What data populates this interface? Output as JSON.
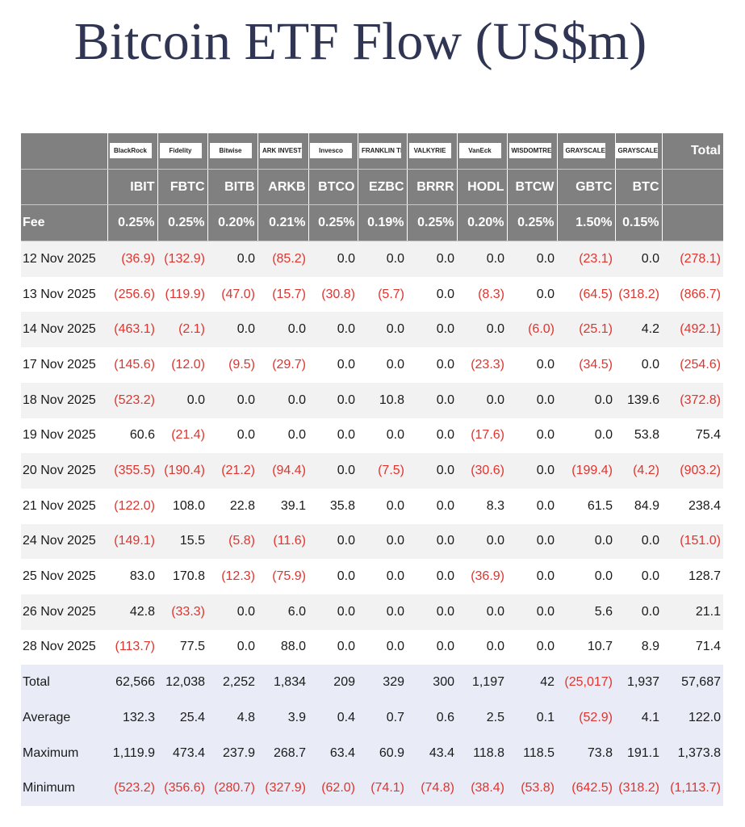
{
  "title": "Bitcoin ETF Flow (US$m)",
  "header": {
    "logos": [
      "BlackRock",
      "Fidelity",
      "Bitwise",
      "ARK INVEST",
      "Invesco",
      "FRANKLIN TEMPLETON",
      "VALKYRIE",
      "VanEck",
      "WISDOMTREE",
      "GRAYSCALE",
      "GRAYSCALE"
    ],
    "total": "Total",
    "tickers": [
      "IBIT",
      "FBTC",
      "BITB",
      "ARKB",
      "BTCO",
      "EZBC",
      "BRRR",
      "HODL",
      "BTCW",
      "GBTC",
      "BTC"
    ],
    "fee_label": "Fee",
    "fees": [
      "0.25%",
      "0.25%",
      "0.20%",
      "0.21%",
      "0.25%",
      "0.19%",
      "0.25%",
      "0.20%",
      "0.25%",
      "1.50%",
      "0.15%"
    ]
  },
  "rows": [
    [
      "12 Nov 2025",
      "(36.9)",
      "(132.9)",
      "0.0",
      "(85.2)",
      "0.0",
      "0.0",
      "0.0",
      "0.0",
      "0.0",
      "(23.1)",
      "0.0",
      "(278.1)"
    ],
    [
      "13 Nov 2025",
      "(256.6)",
      "(119.9)",
      "(47.0)",
      "(15.7)",
      "(30.8)",
      "(5.7)",
      "0.0",
      "(8.3)",
      "0.0",
      "(64.5)",
      "(318.2)",
      "(866.7)"
    ],
    [
      "14 Nov 2025",
      "(463.1)",
      "(2.1)",
      "0.0",
      "0.0",
      "0.0",
      "0.0",
      "0.0",
      "0.0",
      "(6.0)",
      "(25.1)",
      "4.2",
      "(492.1)"
    ],
    [
      "17 Nov 2025",
      "(145.6)",
      "(12.0)",
      "(9.5)",
      "(29.7)",
      "0.0",
      "0.0",
      "0.0",
      "(23.3)",
      "0.0",
      "(34.5)",
      "0.0",
      "(254.6)"
    ],
    [
      "18 Nov 2025",
      "(523.2)",
      "0.0",
      "0.0",
      "0.0",
      "0.0",
      "10.8",
      "0.0",
      "0.0",
      "0.0",
      "0.0",
      "139.6",
      "(372.8)"
    ],
    [
      "19 Nov 2025",
      "60.6",
      "(21.4)",
      "0.0",
      "0.0",
      "0.0",
      "0.0",
      "0.0",
      "(17.6)",
      "0.0",
      "0.0",
      "53.8",
      "75.4"
    ],
    [
      "20 Nov 2025",
      "(355.5)",
      "(190.4)",
      "(21.2)",
      "(94.4)",
      "0.0",
      "(7.5)",
      "0.0",
      "(30.6)",
      "0.0",
      "(199.4)",
      "(4.2)",
      "(903.2)"
    ],
    [
      "21 Nov 2025",
      "(122.0)",
      "108.0",
      "22.8",
      "39.1",
      "35.8",
      "0.0",
      "0.0",
      "8.3",
      "0.0",
      "61.5",
      "84.9",
      "238.4"
    ],
    [
      "24 Nov 2025",
      "(149.1)",
      "15.5",
      "(5.8)",
      "(11.6)",
      "0.0",
      "0.0",
      "0.0",
      "0.0",
      "0.0",
      "0.0",
      "0.0",
      "(151.0)"
    ],
    [
      "25 Nov 2025",
      "83.0",
      "170.8",
      "(12.3)",
      "(75.9)",
      "0.0",
      "0.0",
      "0.0",
      "(36.9)",
      "0.0",
      "0.0",
      "0.0",
      "128.7"
    ],
    [
      "26 Nov 2025",
      "42.8",
      "(33.3)",
      "0.0",
      "6.0",
      "0.0",
      "0.0",
      "0.0",
      "0.0",
      "0.0",
      "5.6",
      "0.0",
      "21.1"
    ],
    [
      "28 Nov 2025",
      "(113.7)",
      "77.5",
      "0.0",
      "88.0",
      "0.0",
      "0.0",
      "0.0",
      "0.0",
      "0.0",
      "10.7",
      "8.9",
      "71.4"
    ]
  ],
  "summary": [
    [
      "Total",
      "62,566",
      "12,038",
      "2,252",
      "1,834",
      "209",
      "329",
      "300",
      "1,197",
      "42",
      "(25,017)",
      "1,937",
      "57,687"
    ],
    [
      "Average",
      "132.3",
      "25.4",
      "4.8",
      "3.9",
      "0.4",
      "0.7",
      "0.6",
      "2.5",
      "0.1",
      "(52.9)",
      "4.1",
      "122.0"
    ],
    [
      "Maximum",
      "1,119.9",
      "473.4",
      "237.9",
      "268.7",
      "63.4",
      "60.9",
      "43.4",
      "118.8",
      "118.5",
      "73.8",
      "191.1",
      "1,373.8"
    ],
    [
      "Minimum",
      "(523.2)",
      "(356.6)",
      "(280.7)",
      "(327.9)",
      "(62.0)",
      "(74.1)",
      "(74.8)",
      "(38.4)",
      "(53.8)",
      "(642.5)",
      "(318.2)",
      "(1,113.7)"
    ]
  ]
}
